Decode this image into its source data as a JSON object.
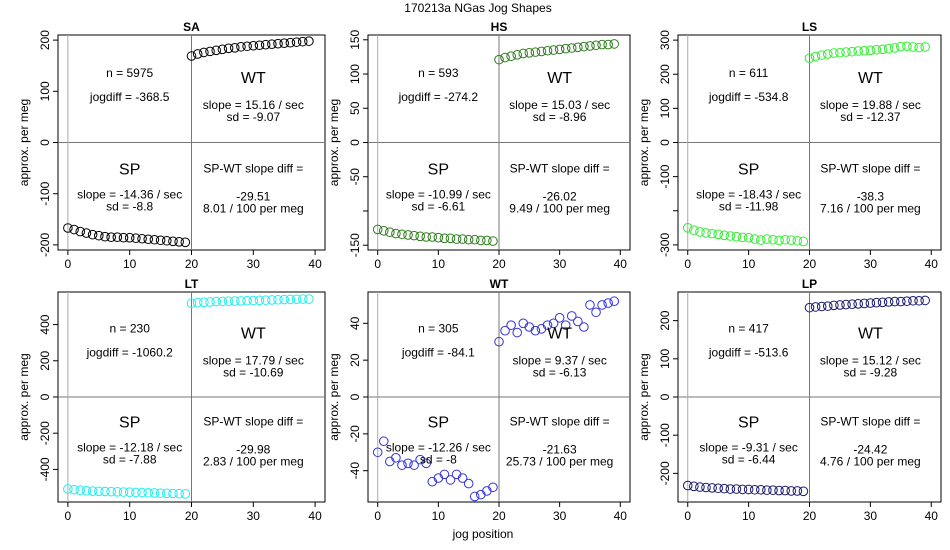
{
  "title": "170213a   NGas Jog Shapes",
  "xlabel": "jog position",
  "ylabel": "approx. per meg",
  "chart_data": [
    {
      "type": "scatter",
      "title": "SA",
      "xlim": [
        0,
        40
      ],
      "xticks": [
        0,
        10,
        20,
        30,
        40
      ],
      "ylim": [
        -210,
        210
      ],
      "yticks": [
        -200,
        -100,
        0,
        100,
        200
      ],
      "color": "#000000",
      "sp": [
        [
          0,
          -167
        ],
        [
          1,
          -170
        ],
        [
          2,
          -174
        ],
        [
          3,
          -177
        ],
        [
          4,
          -180
        ],
        [
          5,
          -182
        ],
        [
          6,
          -184
        ],
        [
          7,
          -185
        ],
        [
          8,
          -185
        ],
        [
          9,
          -186
        ],
        [
          10,
          -186
        ],
        [
          11,
          -187
        ],
        [
          12,
          -188
        ],
        [
          13,
          -189
        ],
        [
          14,
          -190
        ],
        [
          15,
          -191
        ],
        [
          16,
          -192
        ],
        [
          17,
          -193
        ],
        [
          18,
          -194
        ],
        [
          19,
          -195
        ]
      ],
      "wt": [
        [
          20,
          169
        ],
        [
          21,
          173
        ],
        [
          22,
          176
        ],
        [
          23,
          178
        ],
        [
          24,
          180
        ],
        [
          25,
          182
        ],
        [
          26,
          184
        ],
        [
          27,
          185
        ],
        [
          28,
          187
        ],
        [
          29,
          188
        ],
        [
          30,
          189
        ],
        [
          31,
          190
        ],
        [
          32,
          191
        ],
        [
          33,
          192
        ],
        [
          34,
          193
        ],
        [
          35,
          194
        ],
        [
          36,
          195
        ],
        [
          37,
          196
        ],
        [
          38,
          197
        ],
        [
          39,
          198
        ]
      ],
      "n": "n = 5975",
      "jogdiff": "jogdiff = -368.5",
      "wt_label": "WT",
      "wt_slope": "slope = 15.16 / sec",
      "wt_sd": "sd = -9.07",
      "sp_label": "SP",
      "sp_slope": "slope = -14.36 / sec",
      "sp_sd": "sd = -8.8",
      "diff_label": "SP-WT slope diff =",
      "diff_value": "-29.51",
      "diff_rate": "8.01 / 100 per meg"
    },
    {
      "type": "scatter",
      "title": "HS",
      "xlim": [
        0,
        40
      ],
      "xticks": [
        0,
        10,
        20,
        30,
        40
      ],
      "ylim": [
        -157,
        157
      ],
      "yticks": [
        -150,
        -100,
        -50,
        0,
        50,
        100,
        150
      ],
      "ytick_labels": [
        "-150",
        "",
        "-50",
        "0",
        "50",
        "100",
        "150"
      ],
      "color": "#2e7d1e",
      "sp": [
        [
          0,
          -127
        ],
        [
          1,
          -129
        ],
        [
          2,
          -131
        ],
        [
          3,
          -133
        ],
        [
          4,
          -134
        ],
        [
          5,
          -135
        ],
        [
          6,
          -136
        ],
        [
          7,
          -137
        ],
        [
          8,
          -138
        ],
        [
          9,
          -138
        ],
        [
          10,
          -139
        ],
        [
          11,
          -140
        ],
        [
          12,
          -140
        ],
        [
          13,
          -141
        ],
        [
          14,
          -141
        ],
        [
          15,
          -142
        ],
        [
          16,
          -142
        ],
        [
          17,
          -143
        ],
        [
          18,
          -143
        ],
        [
          19,
          -144
        ]
      ],
      "wt": [
        [
          20,
          121
        ],
        [
          21,
          124
        ],
        [
          22,
          126
        ],
        [
          23,
          128
        ],
        [
          24,
          130
        ],
        [
          25,
          131
        ],
        [
          26,
          132
        ],
        [
          27,
          133
        ],
        [
          28,
          134
        ],
        [
          29,
          135
        ],
        [
          30,
          136
        ],
        [
          31,
          137
        ],
        [
          32,
          138
        ],
        [
          33,
          139
        ],
        [
          34,
          140
        ],
        [
          35,
          141
        ],
        [
          36,
          142
        ],
        [
          37,
          143
        ],
        [
          38,
          143
        ],
        [
          39,
          144
        ]
      ],
      "n": "n = 593",
      "jogdiff": "jogdiff = -274.2",
      "wt_label": "WT",
      "wt_slope": "slope = 15.03 / sec",
      "wt_sd": "sd = -8.96",
      "sp_label": "SP",
      "sp_slope": "slope = -10.99 / sec",
      "sp_sd": "sd = -6.61",
      "diff_label": "SP-WT slope diff =",
      "diff_value": "-26.02",
      "diff_rate": "9.49 / 100 per meg"
    },
    {
      "type": "scatter",
      "title": "LS",
      "xlim": [
        0,
        40
      ],
      "xticks": [
        0,
        10,
        20,
        30,
        40
      ],
      "ylim": [
        -315,
        315
      ],
      "yticks": [
        -300,
        -200,
        -100,
        0,
        100,
        200,
        300
      ],
      "ytick_labels": [
        "-300",
        "",
        "-100",
        "0",
        "100",
        "200",
        "300"
      ],
      "color": "#33ee33",
      "sp": [
        [
          0,
          -250
        ],
        [
          1,
          -257
        ],
        [
          2,
          -262
        ],
        [
          3,
          -265
        ],
        [
          4,
          -267
        ],
        [
          5,
          -269
        ],
        [
          6,
          -272
        ],
        [
          7,
          -274
        ],
        [
          8,
          -276
        ],
        [
          9,
          -278
        ],
        [
          10,
          -279
        ],
        [
          11,
          -283
        ],
        [
          12,
          -286
        ],
        [
          13,
          -283
        ],
        [
          14,
          -285
        ],
        [
          15,
          -287
        ],
        [
          16,
          -285
        ],
        [
          17,
          -286
        ],
        [
          18,
          -288
        ],
        [
          19,
          -290
        ]
      ],
      "wt": [
        [
          20,
          247
        ],
        [
          21,
          252
        ],
        [
          22,
          256
        ],
        [
          23,
          259
        ],
        [
          24,
          262
        ],
        [
          25,
          263
        ],
        [
          26,
          265
        ],
        [
          27,
          266
        ],
        [
          28,
          268
        ],
        [
          29,
          269
        ],
        [
          30,
          270
        ],
        [
          31,
          272
        ],
        [
          32,
          273
        ],
        [
          33,
          275
        ],
        [
          34,
          277
        ],
        [
          35,
          281
        ],
        [
          36,
          282
        ],
        [
          37,
          280
        ],
        [
          38,
          278
        ],
        [
          39,
          280
        ]
      ],
      "n": "n = 611",
      "jogdiff": "jogdiff = -534.8",
      "wt_label": "WT",
      "wt_slope": "slope = 19.88 / sec",
      "wt_sd": "sd = -12.37",
      "sp_label": "SP",
      "sp_slope": "slope = -18.43 / sec",
      "sp_sd": "sd = -11.98",
      "diff_label": "SP-WT slope diff =",
      "diff_value": "-38.3",
      "diff_rate": "7.16 / 100 per meg"
    },
    {
      "type": "scatter",
      "title": "LT",
      "xlim": [
        0,
        40
      ],
      "xticks": [
        0,
        10,
        20,
        30,
        40
      ],
      "ylim": [
        -580,
        580
      ],
      "yticks": [
        -400,
        -200,
        0,
        200,
        400
      ],
      "color": "#22eeee",
      "sp": [
        [
          0,
          -508
        ],
        [
          1,
          -512
        ],
        [
          2,
          -515
        ],
        [
          3,
          -518
        ],
        [
          4,
          -520
        ],
        [
          5,
          -521
        ],
        [
          6,
          -522
        ],
        [
          7,
          -523
        ],
        [
          8,
          -524
        ],
        [
          9,
          -525
        ],
        [
          10,
          -526
        ],
        [
          11,
          -527
        ],
        [
          12,
          -528
        ],
        [
          13,
          -529
        ],
        [
          14,
          -530
        ],
        [
          15,
          -531
        ],
        [
          16,
          -532
        ],
        [
          17,
          -533
        ],
        [
          18,
          -534
        ],
        [
          19,
          -535
        ]
      ],
      "wt": [
        [
          20,
          518
        ],
        [
          21,
          521
        ],
        [
          22,
          523
        ],
        [
          23,
          525
        ],
        [
          24,
          527
        ],
        [
          25,
          528
        ],
        [
          26,
          529
        ],
        [
          27,
          530
        ],
        [
          28,
          531
        ],
        [
          29,
          532
        ],
        [
          30,
          533
        ],
        [
          31,
          534
        ],
        [
          32,
          535
        ],
        [
          33,
          536
        ],
        [
          34,
          537
        ],
        [
          35,
          538
        ],
        [
          36,
          539
        ],
        [
          37,
          540
        ],
        [
          38,
          541
        ],
        [
          39,
          541
        ]
      ],
      "n": "n = 230",
      "jogdiff": "jogdiff = -1060.2",
      "wt_label": "WT",
      "wt_slope": "slope = 17.79 / sec",
      "wt_sd": "sd = -10.69",
      "sp_label": "SP",
      "sp_slope": "slope = -12.18 / sec",
      "sp_sd": "sd = -7.88",
      "diff_label": "SP-WT slope diff =",
      "diff_value": "-29.98",
      "diff_rate": "2.83 / 100 per meg"
    },
    {
      "type": "scatter",
      "title": "WT",
      "xlim": [
        0,
        40
      ],
      "xticks": [
        0,
        10,
        20,
        30,
        40
      ],
      "ylim": [
        -57,
        57
      ],
      "yticks": [
        -40,
        -20,
        0,
        20,
        40
      ],
      "color": "#3333dd",
      "sp": [
        [
          0,
          -30
        ],
        [
          1,
          -24
        ],
        [
          2,
          -35
        ],
        [
          3,
          -33
        ],
        [
          4,
          -37
        ],
        [
          5,
          -36
        ],
        [
          6,
          -37
        ],
        [
          7,
          -34
        ],
        [
          8,
          -36
        ],
        [
          9,
          -46
        ],
        [
          10,
          -44
        ],
        [
          11,
          -42
        ],
        [
          12,
          -45
        ],
        [
          13,
          -42
        ],
        [
          14,
          -44
        ],
        [
          15,
          -47
        ],
        [
          16,
          -54
        ],
        [
          17,
          -53
        ],
        [
          18,
          -51
        ],
        [
          19,
          -49
        ]
      ],
      "wt": [
        [
          20,
          30
        ],
        [
          21,
          36
        ],
        [
          22,
          39
        ],
        [
          23,
          35
        ],
        [
          24,
          40
        ],
        [
          25,
          38
        ],
        [
          26,
          36
        ],
        [
          27,
          37
        ],
        [
          28,
          39
        ],
        [
          29,
          40
        ],
        [
          30,
          43
        ],
        [
          31,
          39
        ],
        [
          32,
          44
        ],
        [
          33,
          41
        ],
        [
          34,
          38
        ],
        [
          35,
          50
        ],
        [
          36,
          46
        ],
        [
          37,
          50
        ],
        [
          38,
          51
        ],
        [
          39,
          52
        ]
      ],
      "n": "n = 305",
      "jogdiff": "jogdiff = -84.1",
      "wt_label": "WT",
      "wt_slope": "slope = 9.37 / sec",
      "wt_sd": "sd = -6.13",
      "sp_label": "SP",
      "sp_slope": "slope = -12.26 / sec",
      "sp_sd": "sd = -8",
      "diff_label": "SP-WT slope diff =",
      "diff_value": "-21.63",
      "diff_rate": "25.73 / 100 per meg"
    },
    {
      "type": "scatter",
      "title": "LP",
      "xlim": [
        0,
        40
      ],
      "xticks": [
        0,
        10,
        20,
        30,
        40
      ],
      "ylim": [
        -275,
        275
      ],
      "yticks": [
        -200,
        -100,
        0,
        100,
        200
      ],
      "color": "#1a1a6e",
      "sp": [
        [
          0,
          -232
        ],
        [
          1,
          -234
        ],
        [
          2,
          -236
        ],
        [
          3,
          -237
        ],
        [
          4,
          -238
        ],
        [
          5,
          -239
        ],
        [
          6,
          -240
        ],
        [
          7,
          -241
        ],
        [
          8,
          -241
        ],
        [
          9,
          -242
        ],
        [
          10,
          -242
        ],
        [
          11,
          -243
        ],
        [
          12,
          -243
        ],
        [
          13,
          -244
        ],
        [
          14,
          -244
        ],
        [
          15,
          -245
        ],
        [
          16,
          -245
        ],
        [
          17,
          -246
        ],
        [
          18,
          -246
        ],
        [
          19,
          -247
        ]
      ],
      "wt": [
        [
          20,
          234
        ],
        [
          21,
          236
        ],
        [
          22,
          237
        ],
        [
          23,
          238
        ],
        [
          24,
          240
        ],
        [
          25,
          241
        ],
        [
          26,
          242
        ],
        [
          27,
          243
        ],
        [
          28,
          244
        ],
        [
          29,
          245
        ],
        [
          30,
          246
        ],
        [
          31,
          247
        ],
        [
          32,
          248
        ],
        [
          33,
          249
        ],
        [
          34,
          250
        ],
        [
          35,
          250
        ],
        [
          36,
          251
        ],
        [
          37,
          252
        ],
        [
          38,
          252
        ],
        [
          39,
          253
        ]
      ],
      "n": "n = 417",
      "jogdiff": "jogdiff = -513.6",
      "wt_label": "WT",
      "wt_slope": "slope = 15.12 / sec",
      "wt_sd": "sd = -9.28",
      "sp_label": "SP",
      "sp_slope": "slope = -9.31 / sec",
      "sp_sd": "sd = -6.44",
      "diff_label": "SP-WT slope diff =",
      "diff_value": "-24.42",
      "diff_rate": "4.76 / 100 per meg"
    }
  ]
}
